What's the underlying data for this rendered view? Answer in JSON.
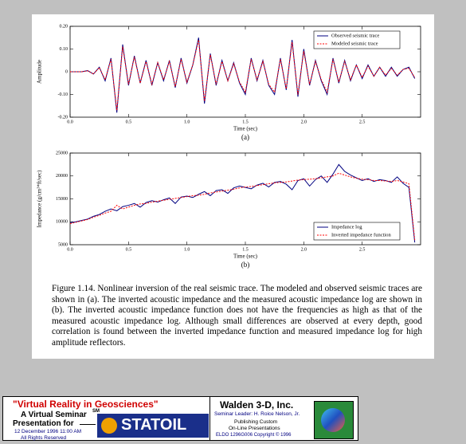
{
  "chart_data": [
    {
      "type": "line",
      "xlabel": "Time (sec)",
      "ylabel": "Amplitude",
      "panel_label": "(a)",
      "legend": "upper right",
      "x": [
        0,
        0.05,
        0.1,
        0.15,
        0.2,
        0.25,
        0.3,
        0.35,
        0.4,
        0.45,
        0.5,
        0.55,
        0.6,
        0.65,
        0.7,
        0.75,
        0.8,
        0.85,
        0.9,
        0.95,
        1,
        1.05,
        1.1,
        1.15,
        1.2,
        1.25,
        1.3,
        1.35,
        1.4,
        1.45,
        1.5,
        1.55,
        1.6,
        1.65,
        1.7,
        1.75,
        1.8,
        1.85,
        1.9,
        1.95,
        2,
        2.05,
        2.1,
        2.15,
        2.2,
        2.25,
        2.3,
        2.35,
        2.4,
        2.45,
        2.5,
        2.55,
        2.6,
        2.65,
        2.7,
        2.75,
        2.8,
        2.85,
        2.9,
        2.95
      ],
      "series": [
        {
          "name": "Observed seismic trace",
          "color": "#000080",
          "style": "solid",
          "values": [
            0,
            0,
            0,
            0.005,
            -0.01,
            0.02,
            -0.04,
            0.06,
            -0.18,
            0.12,
            -0.06,
            0.07,
            -0.05,
            0.05,
            -0.06,
            0.04,
            -0.04,
            0.05,
            -0.07,
            0.06,
            -0.05,
            0.03,
            0.15,
            -0.14,
            0.08,
            -0.06,
            0.05,
            -0.04,
            0.04,
            -0.05,
            -0.1,
            0.06,
            -0.04,
            0.05,
            -0.06,
            -0.1,
            0.06,
            -0.08,
            0.14,
            -0.11,
            0.1,
            -0.06,
            0.05,
            -0.04,
            -0.1,
            0.06,
            -0.05,
            0.05,
            -0.04,
            0.03,
            -0.03,
            0.03,
            -0.02,
            0.02,
            -0.02,
            0.02,
            -0.02,
            0.01,
            0.02,
            -0.03
          ]
        },
        {
          "name": "Modeled seismic trace",
          "color": "#ff0000",
          "style": "dashed",
          "values": [
            0,
            0,
            0,
            0.004,
            -0.01,
            0.018,
            -0.035,
            0.055,
            -0.17,
            0.11,
            -0.055,
            0.065,
            -0.05,
            0.045,
            -0.055,
            0.04,
            -0.035,
            0.045,
            -0.065,
            0.055,
            -0.045,
            0.03,
            0.14,
            -0.13,
            0.075,
            -0.055,
            0.045,
            -0.04,
            0.035,
            -0.045,
            -0.09,
            0.055,
            -0.035,
            0.045,
            -0.055,
            -0.09,
            0.055,
            -0.075,
            0.13,
            -0.1,
            0.09,
            -0.055,
            0.045,
            -0.035,
            -0.09,
            0.055,
            -0.045,
            0.045,
            -0.035,
            0.03,
            -0.025,
            0.025,
            -0.02,
            0.02,
            -0.015,
            0.015,
            -0.015,
            0.01,
            0.015,
            -0.025
          ]
        }
      ],
      "xlim": [
        0,
        3
      ],
      "ylim": [
        -0.2,
        0.2
      ],
      "xticks": [
        {
          "value": 0,
          "label": "0.0"
        },
        0.5,
        {
          "value": 1,
          "label": "1.0"
        },
        1.5,
        {
          "value": 2,
          "label": "2.0"
        },
        2.5
      ],
      "yticks": [
        {
          "value": -0.2,
          "label": "-0.20"
        },
        {
          "value": -0.1,
          "label": "-0.10"
        },
        0,
        {
          "value": 0.1,
          "label": "0.10"
        },
        {
          "value": 0.2,
          "label": "0.20"
        }
      ]
    },
    {
      "type": "line",
      "xlabel": "Time (sec)",
      "ylabel": "Impedance (g/cm³*ft/sec)",
      "panel_label": "(b)",
      "legend": "lower right",
      "x": [
        0,
        0.05,
        0.1,
        0.15,
        0.2,
        0.25,
        0.3,
        0.35,
        0.4,
        0.45,
        0.5,
        0.55,
        0.6,
        0.65,
        0.7,
        0.75,
        0.8,
        0.85,
        0.9,
        0.95,
        1,
        1.05,
        1.1,
        1.15,
        1.2,
        1.25,
        1.3,
        1.35,
        1.4,
        1.45,
        1.5,
        1.55,
        1.6,
        1.65,
        1.7,
        1.75,
        1.8,
        1.85,
        1.9,
        1.95,
        2,
        2.05,
        2.1,
        2.15,
        2.2,
        2.25,
        2.3,
        2.35,
        2.4,
        2.45,
        2.5,
        2.55,
        2.6,
        2.65,
        2.7,
        2.75,
        2.8,
        2.85,
        2.9,
        2.95
      ],
      "series": [
        {
          "name": "Impedance log",
          "color": "#000080",
          "style": "solid",
          "values": [
            9800,
            10000,
            10300,
            10600,
            11200,
            11600,
            12300,
            12800,
            12400,
            13300,
            13600,
            14000,
            13200,
            14200,
            14600,
            14300,
            14800,
            15200,
            14000,
            15400,
            15600,
            15300,
            16000,
            16600,
            15700,
            16800,
            17000,
            16200,
            17400,
            17800,
            17500,
            17200,
            18000,
            18400,
            17600,
            18600,
            18800,
            18200,
            17000,
            19000,
            19400,
            17800,
            19200,
            20000,
            18600,
            20400,
            22500,
            21000,
            20200,
            19600,
            19000,
            19400,
            18800,
            19200,
            19000,
            18600,
            19800,
            18400,
            17500,
            5500
          ]
        },
        {
          "name": "Inverted impedance function",
          "color": "#ff0000",
          "style": "dashed",
          "values": [
            9600,
            9900,
            10200,
            10500,
            11000,
            11400,
            11900,
            12300,
            13600,
            12800,
            13200,
            13600,
            13900,
            14000,
            14300,
            14500,
            14700,
            14900,
            15100,
            15300,
            15500,
            15700,
            15800,
            16000,
            16300,
            16500,
            16700,
            16900,
            17100,
            17400,
            17600,
            17700,
            17900,
            18100,
            18300,
            18500,
            18600,
            18700,
            18900,
            19100,
            19200,
            19300,
            19400,
            19600,
            19800,
            20000,
            20600,
            20200,
            19800,
            19500,
            19300,
            19200,
            19000,
            19000,
            18900,
            18800,
            19000,
            18700,
            18300,
            6000
          ]
        }
      ],
      "xlim": [
        0,
        3
      ],
      "ylim": [
        5000,
        25000
      ],
      "xticks": [
        {
          "value": 0,
          "label": "0.0"
        },
        0.5,
        {
          "value": 1,
          "label": "1.0"
        },
        1.5,
        {
          "value": 2,
          "label": "2.0"
        },
        2.5
      ],
      "yticks": [
        5000,
        10000,
        15000,
        20000,
        25000
      ]
    }
  ],
  "caption": "Figure 1.14.  Nonlinear inversion of the real seismic trace.  The modeled and observed seismic traces are shown in (a).  The inverted acoustic impedance and the measured acoustic impedance log are shown in (b).  The inverted acoustic impedance function does not have the frequencies as high as that of the measured acoustic impedance log.  Although small differences are observed at every depth, good correlation is found between the inverted impedance function and measured impedance log for high amplitude reflectors.",
  "footer": {
    "title": "\"Virtual Reality in Geosciences\"",
    "subtitle": "A Virtual Seminar",
    "service_mark": "SM",
    "presentation_for": "Presentation for",
    "date": "12 December 1996  11:00 AM",
    "rights": "All Rights Reserved",
    "client": "STATOIL",
    "company": "Walden 3-D, Inc.",
    "leader": "Seminar Leader: H. Roice Nelson, Jr.",
    "publishing": "Publishing Custom",
    "online": "On-Line Presentations",
    "copyright": "ELDO 1296G006 Copyright © 1996"
  }
}
